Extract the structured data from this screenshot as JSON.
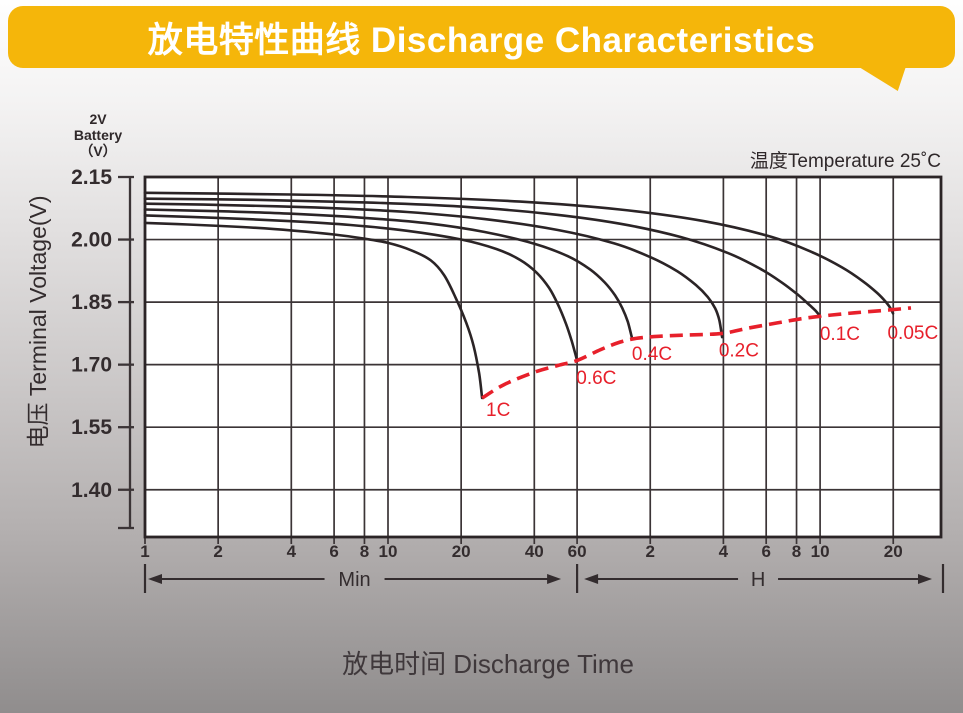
{
  "banner": {
    "title": "放电特性曲线 Discharge Characteristics",
    "bg_color": "#F5B60A",
    "text_color": "#FFFFFF"
  },
  "labels": {
    "corner_line1": "2V",
    "corner_line2": "Battery",
    "corner_line3": "（V）",
    "temperature_note": "温度Temperature 25˚C",
    "y_axis_title": "电压 Terminal Voltage(V)",
    "x_axis_title": "放电时间 Discharge Time"
  },
  "chart_data": {
    "type": "line",
    "title": "放电特性曲线 Discharge Characteristics",
    "xlabel": "放电时间 Discharge Time",
    "ylabel": "电压 Terminal Voltage(V)",
    "temperature": "25˚C",
    "battery": "2V Battery",
    "x_axis": {
      "scale": "log10",
      "unit_minutes": true,
      "ticks": [
        {
          "t": 1,
          "label": "1",
          "section": "Min"
        },
        {
          "t": 2,
          "label": "2",
          "section": "Min"
        },
        {
          "t": 4,
          "label": "4",
          "section": "Min"
        },
        {
          "t": 6,
          "label": "6",
          "section": "Min"
        },
        {
          "t": 8,
          "label": "8",
          "section": "Min"
        },
        {
          "t": 10,
          "label": "10",
          "section": "Min"
        },
        {
          "t": 20,
          "label": "20",
          "section": "Min"
        },
        {
          "t": 40,
          "label": "40",
          "section": "Min"
        },
        {
          "t": 60,
          "label": "60",
          "section": "Min"
        },
        {
          "t": 120,
          "label": "2",
          "section": "H"
        },
        {
          "t": 240,
          "label": "4",
          "section": "H"
        },
        {
          "t": 360,
          "label": "6",
          "section": "H"
        },
        {
          "t": 480,
          "label": "8",
          "section": "H"
        },
        {
          "t": 600,
          "label": "10",
          "section": "H"
        },
        {
          "t": 1200,
          "label": "20",
          "section": "H"
        }
      ],
      "unit_sections": [
        {
          "label": "Min",
          "t_start": 1,
          "t_end": 60
        },
        {
          "label": "H",
          "t_start": 60,
          "t_end": 1887
        }
      ]
    },
    "y_axis": {
      "unit": "V",
      "top": 2.15,
      "bottom": 1.287,
      "ticks": [
        {
          "v": 2.15,
          "label": "2.15"
        },
        {
          "v": 2.0,
          "label": "2.00"
        },
        {
          "v": 1.85,
          "label": "1.85"
        },
        {
          "v": 1.7,
          "label": "1.70"
        },
        {
          "v": 1.55,
          "label": "1.55"
        },
        {
          "v": 1.4,
          "label": "1.40"
        }
      ]
    },
    "series": [
      {
        "name": "1C",
        "points": [
          [
            1,
            2.04
          ],
          [
            1.5,
            2.036
          ],
          [
            2.5,
            2.03
          ],
          [
            4,
            2.022
          ],
          [
            6,
            2.012
          ],
          [
            8,
            2.002
          ],
          [
            10,
            1.992
          ],
          [
            12.5,
            1.974
          ],
          [
            15,
            1.95
          ],
          [
            17,
            1.915
          ],
          [
            19,
            1.86
          ],
          [
            21,
            1.8
          ],
          [
            22.5,
            1.745
          ],
          [
            23.7,
            1.68
          ],
          [
            24.4,
            1.62
          ]
        ]
      },
      {
        "name": "0.6C",
        "points": [
          [
            1,
            2.058
          ],
          [
            2,
            2.052
          ],
          [
            4,
            2.044
          ],
          [
            7,
            2.035
          ],
          [
            12,
            2.021
          ],
          [
            20,
            2.0
          ],
          [
            28,
            1.977
          ],
          [
            35,
            1.951
          ],
          [
            41,
            1.92
          ],
          [
            46,
            1.884
          ],
          [
            50,
            1.845
          ],
          [
            54,
            1.798
          ],
          [
            57,
            1.757
          ],
          [
            60,
            1.71
          ]
        ]
      },
      {
        "name": "0.4C",
        "points": [
          [
            1,
            2.072
          ],
          [
            2,
            2.068
          ],
          [
            4,
            2.062
          ],
          [
            8,
            2.052
          ],
          [
            15,
            2.038
          ],
          [
            25,
            2.018
          ],
          [
            40,
            1.99
          ],
          [
            55,
            1.96
          ],
          [
            68,
            1.928
          ],
          [
            78,
            1.897
          ],
          [
            86,
            1.866
          ],
          [
            92,
            1.836
          ],
          [
            97,
            1.803
          ],
          [
            101,
            1.763
          ]
        ]
      },
      {
        "name": "0.2C",
        "points": [
          [
            1,
            2.086
          ],
          [
            2,
            2.083
          ],
          [
            5,
            2.077
          ],
          [
            12,
            2.066
          ],
          [
            25,
            2.049
          ],
          [
            50,
            2.023
          ],
          [
            85,
            1.991
          ],
          [
            120,
            1.958
          ],
          [
            155,
            1.924
          ],
          [
            185,
            1.891
          ],
          [
            207,
            1.862
          ],
          [
            222,
            1.835
          ],
          [
            231,
            1.806
          ],
          [
            237,
            1.766
          ]
        ]
      },
      {
        "name": "0.1C",
        "points": [
          [
            1,
            2.098
          ],
          [
            3,
            2.095
          ],
          [
            8,
            2.089
          ],
          [
            20,
            2.079
          ],
          [
            45,
            2.062
          ],
          [
            90,
            2.038
          ],
          [
            160,
            2.006
          ],
          [
            250,
            1.968
          ],
          [
            340,
            1.93
          ],
          [
            420,
            1.896
          ],
          [
            490,
            1.866
          ],
          [
            545,
            1.842
          ],
          [
            578,
            1.828
          ],
          [
            600,
            1.816
          ]
        ]
      },
      {
        "name": "0.05C",
        "points": [
          [
            1,
            2.112
          ],
          [
            4,
            2.108
          ],
          [
            12,
            2.102
          ],
          [
            35,
            2.091
          ],
          [
            90,
            2.072
          ],
          [
            200,
            2.044
          ],
          [
            380,
            2.006
          ],
          [
            560,
            1.969
          ],
          [
            740,
            1.933
          ],
          [
            900,
            1.9
          ],
          [
            1030,
            1.872
          ],
          [
            1120,
            1.85
          ],
          [
            1170,
            1.835
          ],
          [
            1197,
            1.823
          ]
        ]
      }
    ],
    "cutoff_curve": {
      "name": "discharge-end-envelope",
      "style": "dashed",
      "points": [
        [
          24.4,
          1.62
        ],
        [
          30,
          1.652
        ],
        [
          40,
          1.682
        ],
        [
          50,
          1.698
        ],
        [
          60,
          1.71
        ],
        [
          75,
          1.736
        ],
        [
          90,
          1.754
        ],
        [
          105,
          1.763
        ],
        [
          130,
          1.768
        ],
        [
          170,
          1.771
        ],
        [
          237,
          1.775
        ],
        [
          300,
          1.787
        ],
        [
          400,
          1.8
        ],
        [
          500,
          1.81
        ],
        [
          600,
          1.816
        ],
        [
          750,
          1.822
        ],
        [
          900,
          1.826
        ],
        [
          1100,
          1.83
        ],
        [
          1420,
          1.836
        ]
      ]
    },
    "curve_labels": [
      {
        "text": "1C",
        "t": 28.4,
        "v": 1.594
      },
      {
        "text": "0.6C",
        "t": 72,
        "v": 1.67
      },
      {
        "text": "0.4C",
        "t": 122,
        "v": 1.728
      },
      {
        "text": "0.2C",
        "t": 278,
        "v": 1.736
      },
      {
        "text": "0.1C",
        "t": 724,
        "v": 1.776
      },
      {
        "text": "0.05C",
        "t": 1445,
        "v": 1.778
      }
    ],
    "colors": {
      "curve": "#2B2426",
      "grid": "#3B3436",
      "cutoff": "#E7202B",
      "tick_text": "#332C2E",
      "plot_bg": "#FFFFFF"
    }
  }
}
